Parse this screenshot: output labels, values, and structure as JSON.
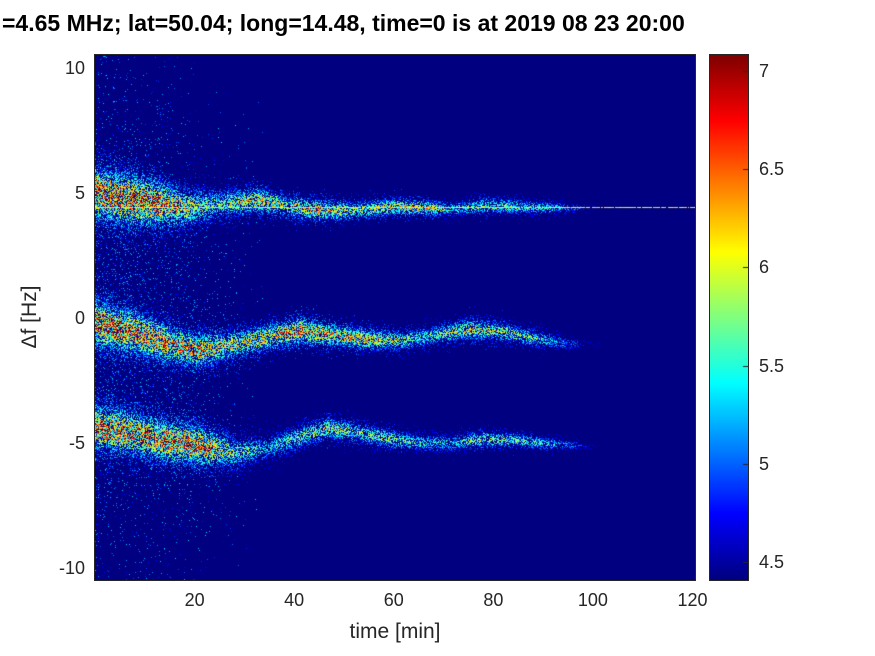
{
  "chart_data": {
    "type": "heatmap",
    "title": "=4.65 MHz;  lat=50.04; long=14.48, time=0 is at 2019 08 23 20:00",
    "xlabel": "time [min]",
    "ylabel": "Δf [Hz]",
    "xlim": [
      0,
      120.5
    ],
    "ylim": [
      -10.5,
      10.5
    ],
    "xticks": [
      20,
      40,
      60,
      80,
      100,
      120
    ],
    "yticks": [
      10,
      5,
      0,
      -5,
      -10
    ],
    "grid": false,
    "colormap": "jet",
    "background_value": 4.41,
    "colorbar": {
      "min": 4.41,
      "max": 7.08,
      "ticks": [
        7,
        6.5,
        6,
        5.5,
        5,
        4.5
      ],
      "position": "right"
    },
    "carrier_line": {
      "freq_hz": 4.42,
      "t_start": 0,
      "t_end": 120.5,
      "intensity_min": 0.52,
      "intensity_max": 0.7,
      "gap_probability": 0.12
    },
    "keyframe_format": "[time_min, center_hz, halfwidth_hz, intensity_0to1_of_color_scale]",
    "bands": [
      {
        "name": "upper-doppler-trace",
        "keyframes": [
          [
            0,
            5.0,
            1.3,
            0.95
          ],
          [
            5,
            4.8,
            1.25,
            1.0
          ],
          [
            12,
            4.6,
            1.1,
            1.0
          ],
          [
            18,
            4.4,
            0.9,
            0.75
          ],
          [
            25,
            4.55,
            0.7,
            0.55
          ],
          [
            33,
            4.7,
            0.6,
            0.8
          ],
          [
            38,
            4.5,
            0.55,
            0.65
          ],
          [
            45,
            4.3,
            0.5,
            0.8
          ],
          [
            52,
            4.3,
            0.45,
            0.6
          ],
          [
            60,
            4.45,
            0.4,
            0.7
          ],
          [
            66,
            4.4,
            0.35,
            0.8
          ],
          [
            72,
            4.35,
            0.35,
            0.45
          ],
          [
            78,
            4.5,
            0.4,
            0.6
          ],
          [
            85,
            4.45,
            0.35,
            0.55
          ],
          [
            92,
            4.4,
            0.3,
            0.45
          ],
          [
            97,
            4.4,
            0.25,
            0.25
          ],
          [
            101,
            4.4,
            0.2,
            0.1
          ],
          [
            105,
            4.4,
            0.2,
            0.0
          ],
          [
            120.5,
            4.4,
            0.2,
            0.0
          ]
        ]
      },
      {
        "name": "middle-doppler-trace",
        "keyframes": [
          [
            0,
            -0.2,
            1.1,
            1.0
          ],
          [
            6,
            -0.5,
            1.0,
            1.0
          ],
          [
            13,
            -0.9,
            0.95,
            0.9
          ],
          [
            20,
            -1.3,
            0.85,
            0.85
          ],
          [
            27,
            -1.1,
            0.75,
            0.7
          ],
          [
            34,
            -0.8,
            0.65,
            0.75
          ],
          [
            41,
            -0.5,
            0.6,
            0.95
          ],
          [
            48,
            -0.7,
            0.55,
            0.8
          ],
          [
            55,
            -0.85,
            0.5,
            0.8
          ],
          [
            62,
            -0.9,
            0.45,
            0.6
          ],
          [
            68,
            -0.7,
            0.45,
            0.55
          ],
          [
            75,
            -0.45,
            0.5,
            0.7
          ],
          [
            82,
            -0.55,
            0.45,
            0.65
          ],
          [
            88,
            -0.8,
            0.4,
            0.55
          ],
          [
            94,
            -1.0,
            0.35,
            0.35
          ],
          [
            98,
            -1.05,
            0.3,
            0.15
          ],
          [
            103,
            -1.05,
            0.25,
            0.05
          ],
          [
            107,
            -1.05,
            0.2,
            0.0
          ],
          [
            120.5,
            -1.05,
            0.2,
            0.0
          ]
        ]
      },
      {
        "name": "lower-doppler-trace",
        "keyframes": [
          [
            0,
            -4.4,
            1.1,
            0.95
          ],
          [
            7,
            -4.6,
            1.05,
            0.9
          ],
          [
            14,
            -4.9,
            1.0,
            0.95
          ],
          [
            21,
            -5.1,
            0.95,
            0.95
          ],
          [
            28,
            -5.4,
            0.75,
            0.6
          ],
          [
            35,
            -5.2,
            0.6,
            0.45
          ],
          [
            42,
            -4.7,
            0.55,
            0.6
          ],
          [
            47,
            -4.4,
            0.5,
            0.7
          ],
          [
            53,
            -4.6,
            0.5,
            0.55
          ],
          [
            58,
            -4.8,
            0.45,
            0.65
          ],
          [
            65,
            -5.0,
            0.4,
            0.5
          ],
          [
            72,
            -5.0,
            0.4,
            0.45
          ],
          [
            78,
            -4.85,
            0.4,
            0.65
          ],
          [
            85,
            -4.9,
            0.35,
            0.55
          ],
          [
            92,
            -5.05,
            0.3,
            0.45
          ],
          [
            98,
            -5.1,
            0.25,
            0.2
          ],
          [
            103,
            -5.15,
            0.2,
            0.0
          ],
          [
            120.5,
            -5.2,
            0.2,
            0.0
          ]
        ]
      }
    ],
    "noise_halo": {
      "t_fade_min": 35,
      "spread_sigma_mult": 3.5,
      "density": 20,
      "intensity_max": 0.27
    },
    "description": "Doppler-shift spectrogram: three speckled fading traces near +4.5 Hz, -0.8 Hz and -5 Hz plus a thin constant yellow-green line at +4.42 Hz on a dark blue jet-colormap background"
  },
  "text_color": "#262626",
  "title_color": "#000000"
}
